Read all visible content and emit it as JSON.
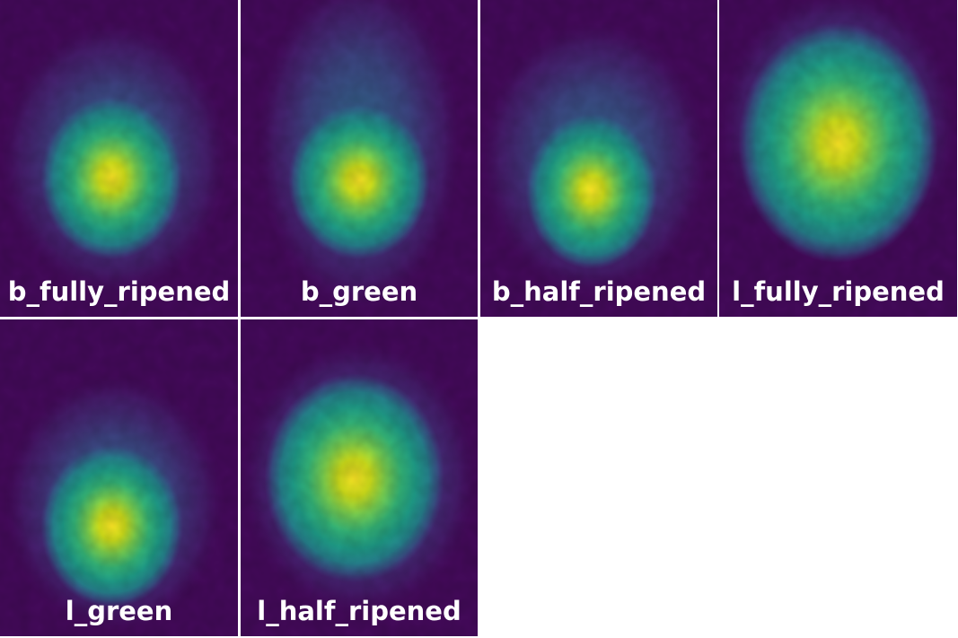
{
  "panels": [
    {
      "label": "b_fully_ripened"
    },
    {
      "label": "b_green"
    },
    {
      "label": "b_half_ripened"
    },
    {
      "label": "l_fully_ripened"
    },
    {
      "label": "l_green"
    },
    {
      "label": "l_half_ripened"
    }
  ]
}
